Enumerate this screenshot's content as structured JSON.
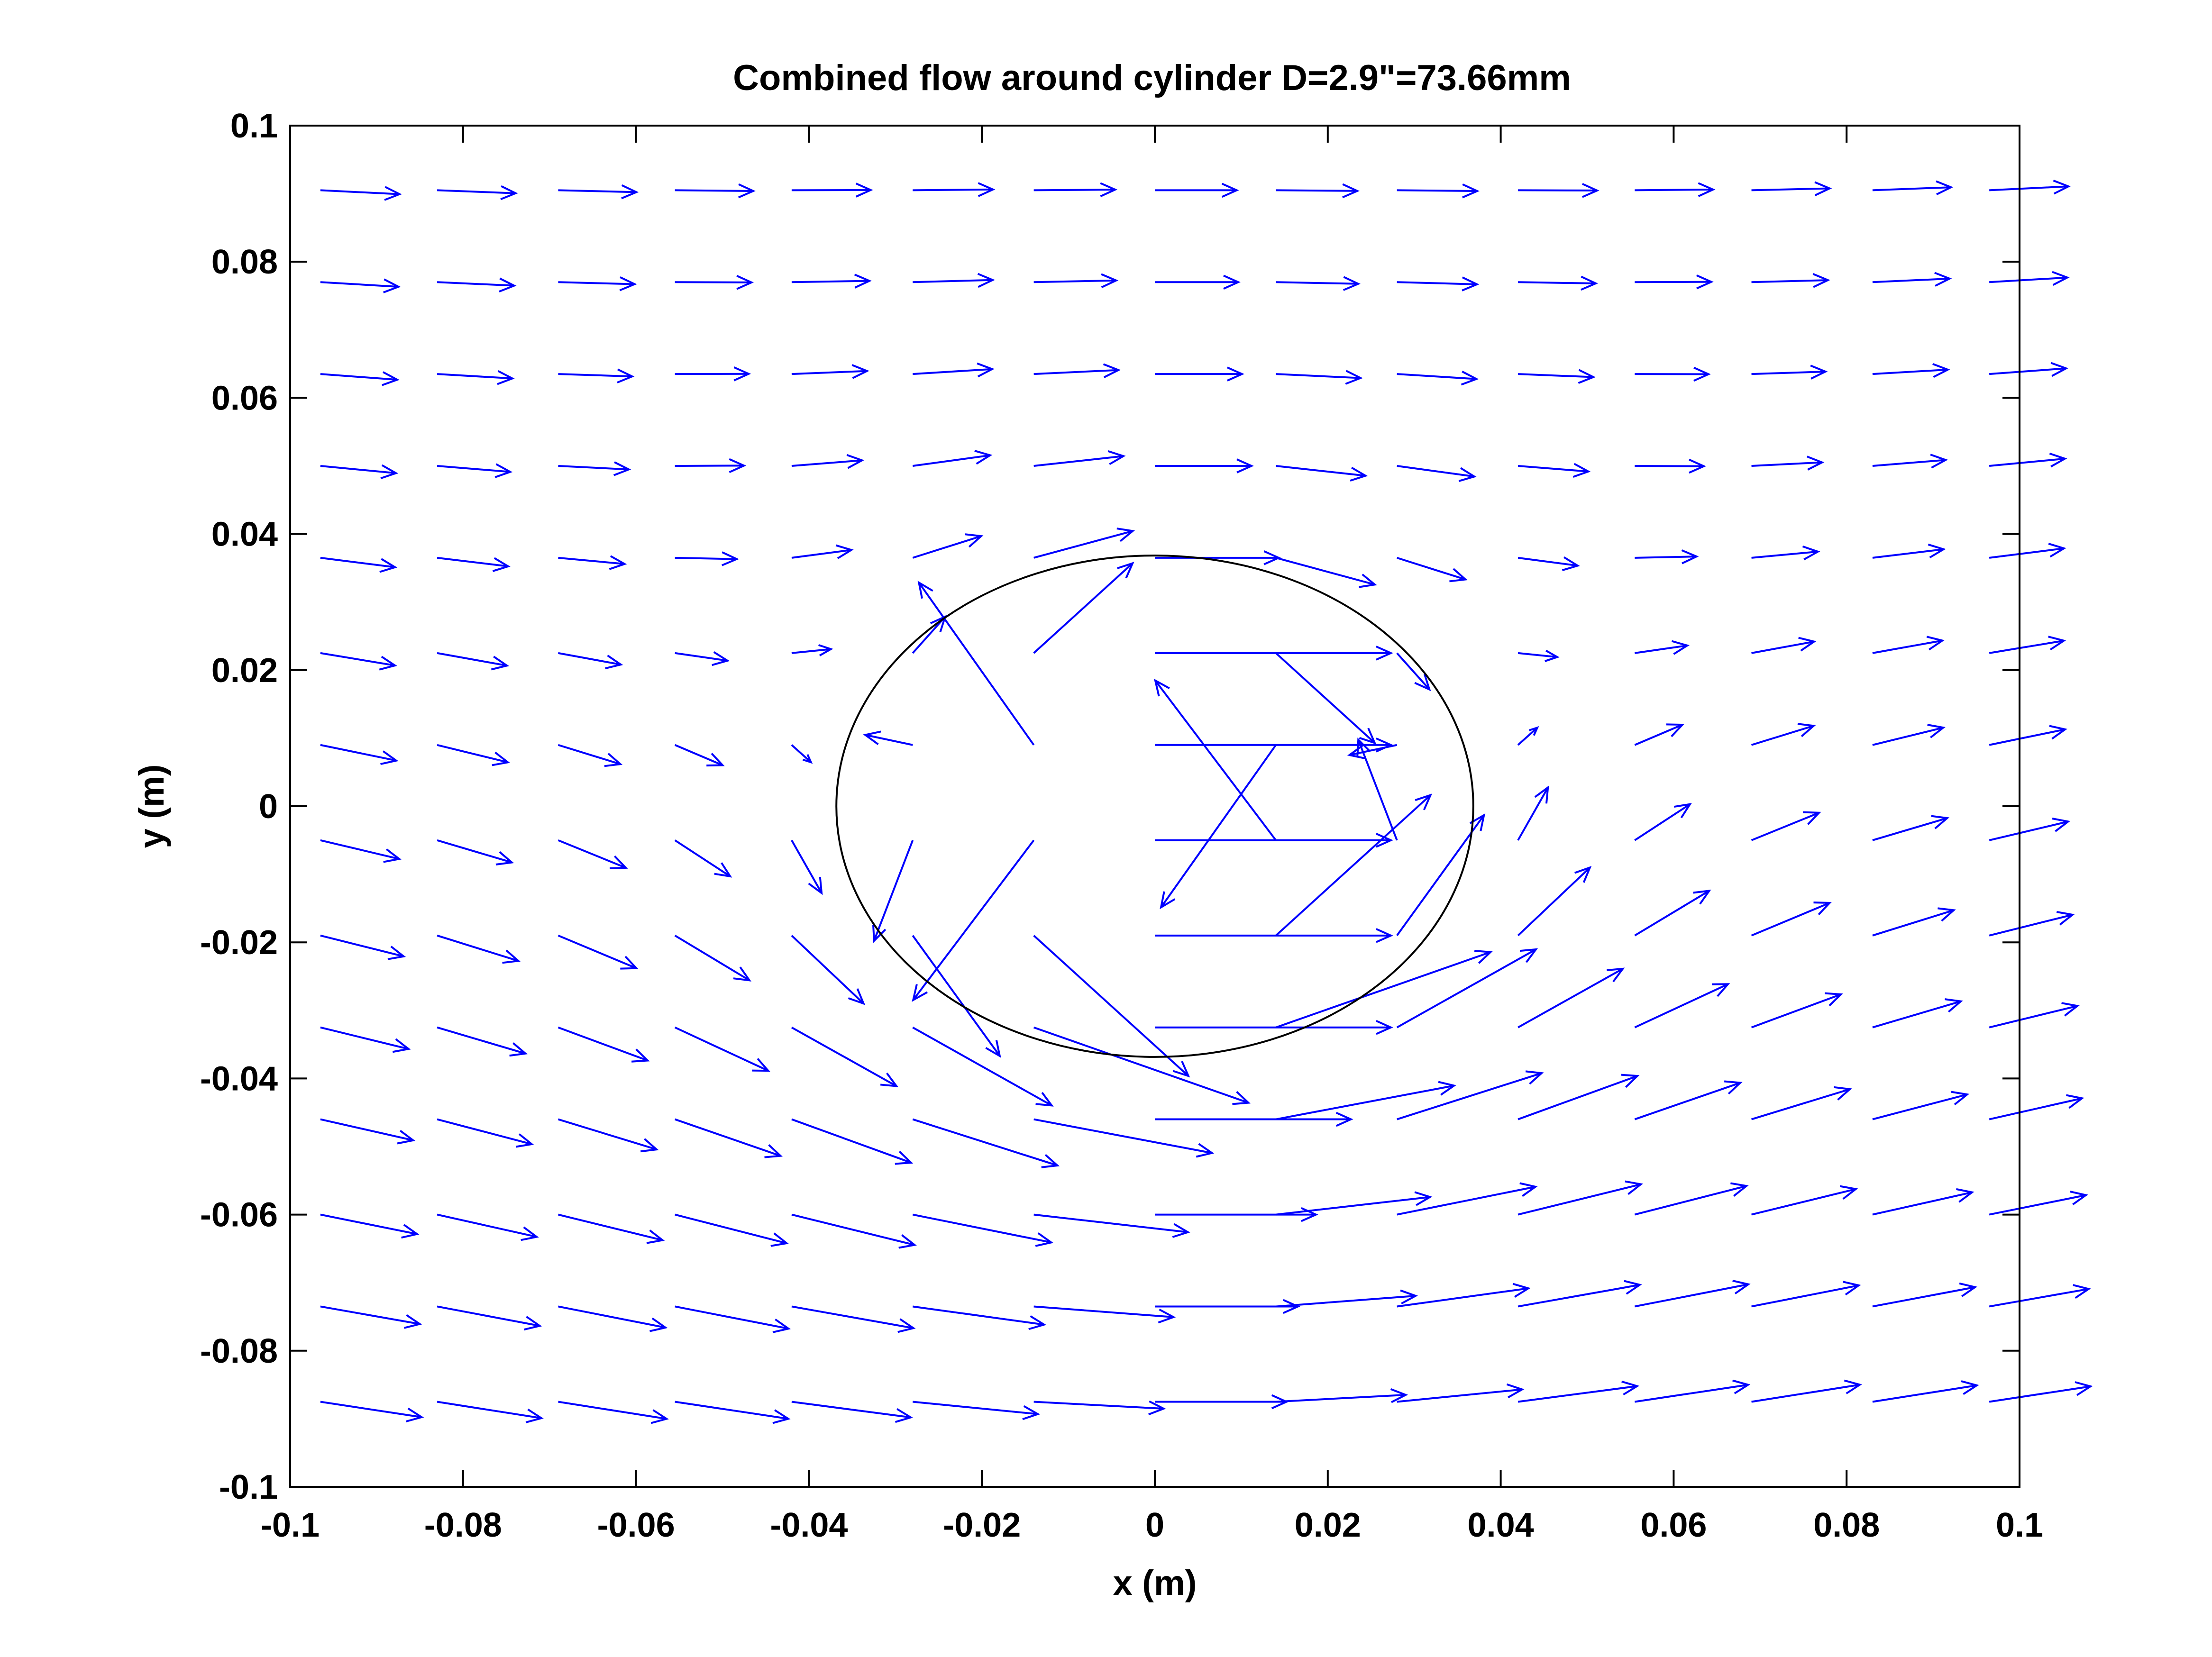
{
  "chart_data": {
    "type": "quiver",
    "title": "Combined flow around cylinder D=2.9\"=73.66mm",
    "xlabel": "x (m)",
    "ylabel": "y (m)",
    "xlim": [
      -0.1,
      0.1
    ],
    "ylim": [
      -0.1,
      0.1
    ],
    "xticks": [
      "-0.1",
      "-0.08",
      "-0.06",
      "-0.04",
      "-0.02",
      "0",
      "0.02",
      "0.04",
      "0.06",
      "0.08",
      "0.1"
    ],
    "yticks": [
      "-0.1",
      "-0.08",
      "-0.06",
      "-0.04",
      "-0.02",
      "0",
      "0.02",
      "0.04",
      "0.06",
      "0.08",
      "0.1"
    ],
    "grid": false,
    "cylinder": {
      "center": [
        0,
        0
      ],
      "diameter_m": 0.07366
    },
    "colors": {
      "arrows": "#0000ff",
      "axes": "#000000",
      "cylinder": "#000000",
      "background": "#ffffff"
    },
    "field": {
      "grid_x": [
        -0.0965,
        -0.083,
        -0.069,
        -0.0555,
        -0.042,
        -0.028,
        -0.014,
        0.0,
        0.014,
        0.028,
        0.042,
        0.0555,
        0.069,
        0.083,
        0.0965
      ],
      "grid_y": [
        0.0905,
        0.077,
        0.0635,
        0.05,
        0.0365,
        0.0225,
        0.009,
        -0.005,
        -0.019,
        -0.0325,
        -0.046,
        -0.06,
        -0.0735,
        -0.0875
      ],
      "free_stream_U": 1.0,
      "cylinder_radius_m": 0.03683,
      "circulation_Gamma": 0.15,
      "arrow_scale": 0.0105
    }
  }
}
